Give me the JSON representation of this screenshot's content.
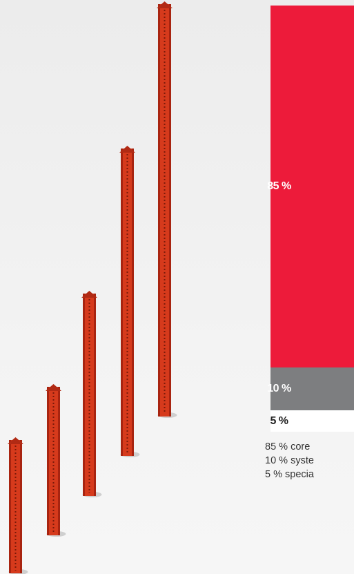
{
  "chart_data": {
    "type": "bar",
    "series": [
      {
        "value": 85,
        "label": "85 %",
        "color": "#ed1b3a",
        "text_color": "#ffffff"
      },
      {
        "value": 10,
        "label": "10 %",
        "color": "#7d7e80",
        "text_color": "#ffffff"
      },
      {
        "value": 5,
        "label": "5 %",
        "color": "#ffffff",
        "text_color": "#222222"
      }
    ],
    "legend": [
      "85 % core",
      "10 % syste",
      "5 % specia"
    ]
  },
  "illustration": {
    "icon": "steel-i-beam-columns",
    "beam_color": "#d63a1c",
    "beam_count": 5
  }
}
